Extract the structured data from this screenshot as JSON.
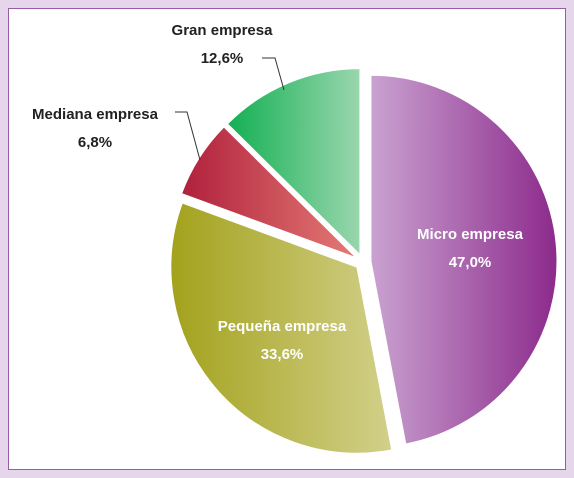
{
  "chart_data": {
    "type": "pie",
    "categories": [
      "Micro empresa",
      "Pequeña empresa",
      "Mediana empresa",
      "Gran empresa"
    ],
    "values": [
      47.0,
      33.6,
      6.8,
      12.6
    ],
    "value_labels": [
      "47,0%",
      "33,6%",
      "6,8%",
      "12,6%"
    ],
    "colors": [
      [
        "#c9a2d0",
        "#8c2a8c"
      ],
      [
        "#a3a21c",
        "#d2d08a"
      ],
      [
        "#b0203c",
        "#e47a74"
      ],
      [
        "#12b052",
        "#9ad6ae"
      ]
    ]
  }
}
